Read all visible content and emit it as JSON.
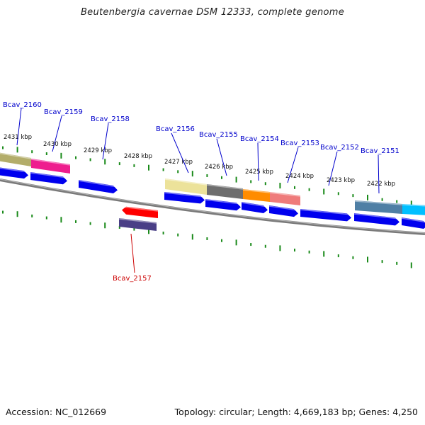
{
  "title": "Beutenbergia cavernae DSM 12333, complete genome",
  "accession": "Accession: NC_012669",
  "stats": "Topology: circular; Length: 4,669,183 bp; Genes: 4,250",
  "colors": {
    "backbone": "#7a7a7a",
    "tick": "#1a8a1a",
    "cds": "#0000ee",
    "label_forward": "#0000cc",
    "label_reverse": "#cc0000",
    "cog_yellow": "#ece29a",
    "cog_olive": "#b3ad6a",
    "cog_magenta": "#ee1e8e",
    "cog_dark_gray": "#6e6e6e",
    "cog_orange": "#ff8c00",
    "cog_salmon": "#ef7b7b",
    "cog_steel": "#4f7fa5",
    "cog_cyan": "#00bfff",
    "cog_red": "#ff0000",
    "cog_purple": "#4a3f86"
  },
  "kbp_labels": [
    "2431 kbp",
    "2430 kbp",
    "2429 kbp",
    "2428 kbp",
    "2427 kbp",
    "2426 kbp",
    "2425 kbp",
    "2424 kbp",
    "2423 kbp",
    "2422 kbp"
  ],
  "genes": [
    {
      "name": "Bcav_2160",
      "strand": "+"
    },
    {
      "name": "Bcav_2159",
      "strand": "+"
    },
    {
      "name": "Bcav_2158",
      "strand": "+"
    },
    {
      "name": "Bcav_2157",
      "strand": "-"
    },
    {
      "name": "Bcav_2156",
      "strand": "+"
    },
    {
      "name": "Bcav_2155",
      "strand": "+"
    },
    {
      "name": "Bcav_2154",
      "strand": "+"
    },
    {
      "name": "Bcav_2153",
      "strand": "+"
    },
    {
      "name": "Bcav_2152",
      "strand": "+"
    },
    {
      "name": "Bcav_2151",
      "strand": "+"
    }
  ]
}
